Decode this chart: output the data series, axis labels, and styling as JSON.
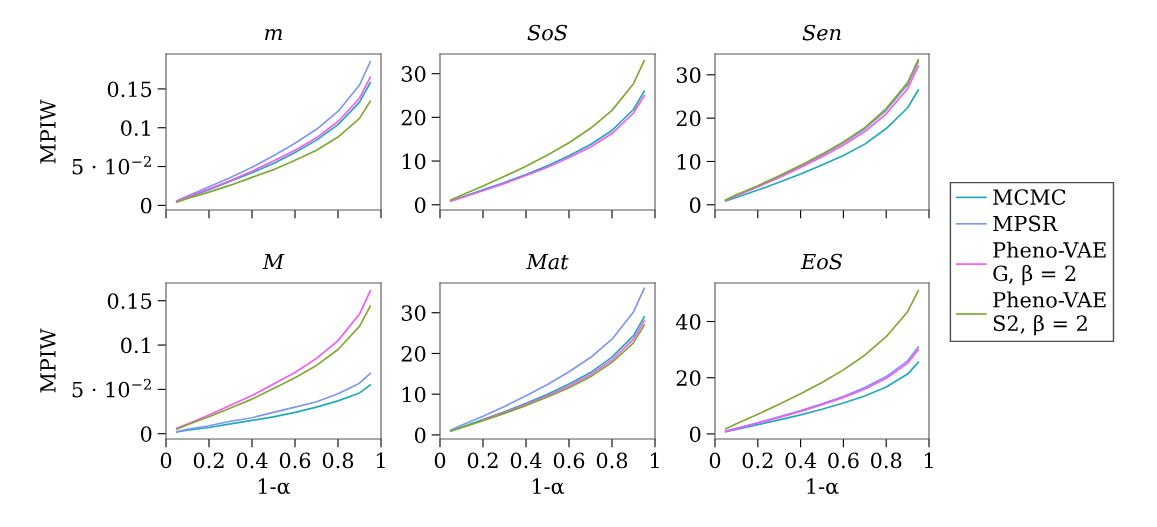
{
  "chart_data": [
    {
      "type": "line",
      "title": "m",
      "ylabel": "MPIW",
      "x": [
        0.05,
        0.1,
        0.2,
        0.3,
        0.4,
        0.5,
        0.6,
        0.7,
        0.8,
        0.9,
        0.95
      ],
      "xlim": [
        0,
        1
      ],
      "xticks": [
        0,
        0.2,
        0.4,
        0.6,
        0.8,
        1
      ],
      "ylim": [
        -0.006,
        0.195
      ],
      "yticks": [
        0,
        {
          "value": 0.05,
          "label": "5 · 10$^{−2}$"
        },
        0.1,
        0.15
      ],
      "tick_labels": "y",
      "legend": "right",
      "series": [
        {
          "name": "MCMC",
          "color": "#23a9b5",
          "values": [
            0.005,
            0.01,
            0.02,
            0.031,
            0.042,
            0.054,
            0.068,
            0.084,
            0.104,
            0.133,
            0.158
          ]
        },
        {
          "name": "MPSR",
          "color": "#8097f0",
          "values": [
            0.006,
            0.012,
            0.024,
            0.036,
            0.049,
            0.064,
            0.08,
            0.098,
            0.121,
            0.155,
            0.185
          ]
        },
        {
          "name": "Pheno-VAE\nG, β = 2",
          "color": "#f25cf0",
          "values": [
            0.005,
            0.011,
            0.021,
            0.032,
            0.044,
            0.057,
            0.071,
            0.087,
            0.108,
            0.138,
            0.165
          ]
        },
        {
          "name": "Pheno-VAE\nS2, β = 2",
          "color": "#7fa832",
          "values": [
            0.004,
            0.009,
            0.017,
            0.026,
            0.036,
            0.046,
            0.058,
            0.071,
            0.088,
            0.112,
            0.134
          ]
        }
      ]
    },
    {
      "type": "line",
      "title": "SoS",
      "x": [
        0.05,
        0.1,
        0.2,
        0.3,
        0.4,
        0.5,
        0.6,
        0.7,
        0.8,
        0.9,
        0.95
      ],
      "xlim": [
        0,
        1
      ],
      "xticks": [
        0,
        0.2,
        0.4,
        0.6,
        0.8,
        1
      ],
      "ylim": [
        -1.2,
        34.5
      ],
      "yticks": [
        0,
        10,
        20,
        30
      ],
      "tick_labels": "y",
      "series": [
        {
          "color": "#23a9b5",
          "values": [
            0.9,
            1.7,
            3.4,
            5.1,
            6.9,
            8.9,
            11.2,
            13.8,
            17.0,
            21.8,
            26
          ]
        },
        {
          "color": "#8097f0",
          "values": [
            null,
            null,
            null,
            null,
            null,
            null,
            null,
            null,
            null,
            null,
            null
          ]
        },
        {
          "color": "#f25cf0",
          "values": [
            0.8,
            1.6,
            3.2,
            4.9,
            6.7,
            8.6,
            10.8,
            13.2,
            16.3,
            21.0,
            25
          ]
        },
        {
          "color": "#7fa832",
          "values": [
            1.1,
            2.2,
            4.3,
            6.5,
            8.8,
            11.4,
            14.2,
            17.5,
            21.6,
            27.7,
            33
          ]
        }
      ]
    },
    {
      "type": "line",
      "title": "Sen",
      "x": [
        0.05,
        0.1,
        0.2,
        0.3,
        0.4,
        0.5,
        0.6,
        0.7,
        0.8,
        0.9,
        0.95
      ],
      "xlim": [
        0,
        1
      ],
      "xticks": [
        0,
        0.2,
        0.4,
        0.6,
        0.8,
        1
      ],
      "ylim": [
        -1.2,
        34.8
      ],
      "yticks": [
        0,
        10,
        20,
        30
      ],
      "tick_labels": "y",
      "series": [
        {
          "color": "#23a9b5",
          "values": [
            0.9,
            1.7,
            3.4,
            5.2,
            7.1,
            9.2,
            11.4,
            14.0,
            17.6,
            22.4,
            26.5
          ]
        },
        {
          "color": "#8097f0",
          "values": [
            1.1,
            2.2,
            4.3,
            6.5,
            8.9,
            11.5,
            14.3,
            17.5,
            21.8,
            27.7,
            33
          ]
        },
        {
          "color": "#f25cf0",
          "values": [
            1.0,
            2.1,
            4.1,
            6.3,
            8.6,
            11.1,
            13.8,
            16.9,
            21.0,
            26.8,
            32
          ]
        },
        {
          "color": "#7fa832",
          "values": [
            1.1,
            2.3,
            4.4,
            6.7,
            9.1,
            11.7,
            14.5,
            17.8,
            22.2,
            28.2,
            33.5
          ]
        }
      ]
    },
    {
      "type": "line",
      "title": "M",
      "ylabel": "MPIW",
      "xlabel": "1-α",
      "x": [
        0.05,
        0.1,
        0.2,
        0.3,
        0.4,
        0.5,
        0.6,
        0.7,
        0.8,
        0.9,
        0.95
      ],
      "xlim": [
        0,
        1
      ],
      "xticks": [
        0,
        0.2,
        0.4,
        0.6,
        0.8,
        1
      ],
      "ylim": [
        -0.006,
        0.17
      ],
      "yticks": [
        0,
        {
          "value": 0.05,
          "label": "5 · 10$^{−2}$"
        },
        0.1,
        0.15
      ],
      "series": [
        {
          "color": "#23a9b5",
          "values": [
            0.002,
            0.004,
            0.007,
            0.011,
            0.015,
            0.019,
            0.024,
            0.03,
            0.037,
            0.046,
            0.055
          ]
        },
        {
          "color": "#8097f0",
          "values": [
            0.002,
            0.005,
            0.009,
            0.014,
            0.018,
            0.024,
            0.03,
            0.036,
            0.045,
            0.057,
            0.068
          ]
        },
        {
          "color": "#f25cf0",
          "values": [
            0.006,
            0.011,
            0.021,
            0.032,
            0.043,
            0.056,
            0.069,
            0.085,
            0.105,
            0.135,
            0.161
          ]
        },
        {
          "color": "#7fa832",
          "values": [
            0.005,
            0.01,
            0.019,
            0.029,
            0.039,
            0.051,
            0.063,
            0.077,
            0.095,
            0.121,
            0.144
          ]
        }
      ]
    },
    {
      "type": "line",
      "title": "Mat",
      "xlabel": "1-α",
      "x": [
        0.05,
        0.1,
        0.2,
        0.3,
        0.4,
        0.5,
        0.6,
        0.7,
        0.8,
        0.9,
        0.95
      ],
      "xlim": [
        0,
        1
      ],
      "xticks": [
        0,
        0.2,
        0.4,
        0.6,
        0.8,
        1
      ],
      "ylim": [
        -1,
        37.3
      ],
      "yticks": [
        0,
        10,
        20,
        30
      ],
      "series": [
        {
          "color": "#23a9b5",
          "values": [
            1.0,
            1.9,
            3.8,
            5.7,
            7.8,
            10.0,
            12.5,
            15.3,
            19.1,
            24.4,
            29
          ]
        },
        {
          "color": "#8097f0",
          "values": [
            1.2,
            2.4,
            4.6,
            7.0,
            9.6,
            12.4,
            15.5,
            19.0,
            23.5,
            30.2,
            36
          ]
        },
        {
          "color": "#f25cf0",
          "values": [
            null,
            null,
            3.7,
            5.5,
            7.5,
            9.6,
            12.0,
            14.8,
            18.4,
            23.5,
            28
          ]
        },
        {
          "color": "#7fa832",
          "values": [
            0.9,
            1.8,
            3.5,
            5.3,
            7.2,
            9.3,
            11.6,
            14.3,
            17.8,
            22.6,
            27
          ]
        }
      ]
    },
    {
      "type": "line",
      "title": "EoS",
      "xlabel": "1-α",
      "x": [
        0.05,
        0.1,
        0.2,
        0.3,
        0.4,
        0.5,
        0.6,
        0.7,
        0.8,
        0.9,
        0.95
      ],
      "xlim": [
        0,
        1
      ],
      "xticks": [
        0,
        0.2,
        0.4,
        0.6,
        0.8,
        1
      ],
      "ylim": [
        -1.8,
        53.7
      ],
      "yticks": [
        0,
        20,
        40
      ],
      "series": [
        {
          "color": "#23a9b5",
          "values": [
            0.8,
            1.6,
            3.3,
            5.0,
            6.8,
            8.8,
            11.0,
            13.5,
            16.7,
            21.3,
            25.5
          ]
        },
        {
          "color": "#8097f0",
          "values": [
            1.0,
            2.0,
            4.0,
            6.1,
            8.3,
            10.7,
            13.3,
            16.5,
            20.4,
            26.0,
            31
          ]
        },
        {
          "color": "#f25cf0",
          "values": [
            0.9,
            1.9,
            3.9,
            5.9,
            8.0,
            10.4,
            13.0,
            16.0,
            19.8,
            25.2,
            30
          ]
        },
        {
          "color": "#7fa832",
          "values": [
            1.8,
            3.6,
            7.0,
            10.6,
            14.3,
            18.3,
            22.8,
            28.0,
            34.6,
            43.5,
            51
          ]
        }
      ]
    }
  ]
}
